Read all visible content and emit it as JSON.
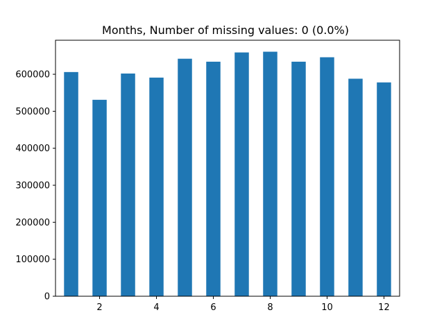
{
  "chart_data": {
    "type": "bar",
    "title": "Months,  Number of missing values: 0 (0.0%)",
    "xlabel": "",
    "ylabel": "",
    "x": [
      1,
      2,
      3,
      4,
      5,
      6,
      7,
      8,
      9,
      10,
      11,
      12
    ],
    "values": [
      606000,
      531000,
      602000,
      591000,
      642000,
      634000,
      659000,
      661000,
      634000,
      646000,
      588000,
      578000
    ],
    "xlim": [
      0.45,
      12.55
    ],
    "ylim": [
      0,
      692000
    ],
    "x_ticks": [
      2,
      4,
      6,
      8,
      10,
      12
    ],
    "y_ticks": [
      0,
      100000,
      200000,
      300000,
      400000,
      500000,
      600000
    ],
    "bar_color": "#1f77b4",
    "grid": false,
    "legend": "none"
  }
}
